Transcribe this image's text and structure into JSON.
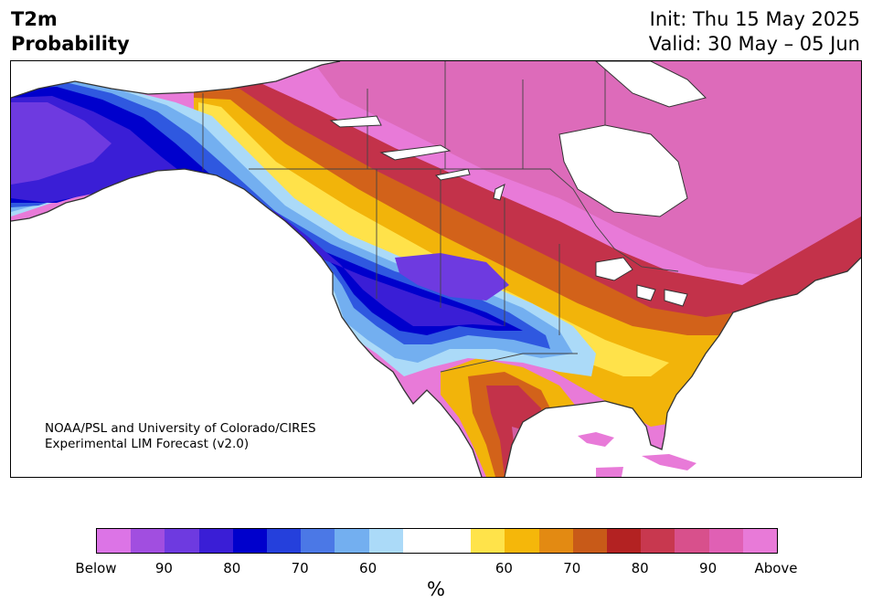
{
  "header": {
    "title_line1": "T2m",
    "title_line2": "Probability",
    "init": "Init: Thu 15 May 2025",
    "valid": "Valid: 30 May – 05 Jun"
  },
  "credit": {
    "line1": "NOAA/PSL and University of Colorado/CIRES",
    "line2": "Experimental LIM Forecast (v2.0)"
  },
  "colorbar": {
    "colors": [
      "#dc74e6",
      "#a14ee0",
      "#6e3ae0",
      "#3a1ed6",
      "#0000cc",
      "#2540dc",
      "#4b78e6",
      "#73aff0",
      "#abdaf8",
      "#ffffff",
      "#ffffff",
      "#ffe34a",
      "#f5b70a",
      "#e38a12",
      "#c85a18",
      "#b32222",
      "#c8384f",
      "#d8508c",
      "#e060b4",
      "#e87ad8"
    ],
    "tick_labels": [
      "Below",
      "90",
      "80",
      "70",
      "60",
      "60",
      "70",
      "80",
      "90",
      "Above"
    ],
    "unit": "%"
  },
  "map": {
    "region": "North America",
    "variable": "2-m temperature tercile probability",
    "colors": {
      "above_high": "#e87ad8",
      "above_mid": "#d35ea2",
      "above_80": "#c3324a",
      "above_70": "#d2621a",
      "above_60": "#f2b40a",
      "above_55": "#ffe24a",
      "below_55": "#abdaf8",
      "below_60": "#73aff0",
      "below_70": "#2f58e0",
      "below_80": "#0000cc",
      "below_90": "#3a1ed6",
      "below_high": "#6e3ae0",
      "land_outline": "#333333",
      "ocean": "#ffffff"
    }
  }
}
